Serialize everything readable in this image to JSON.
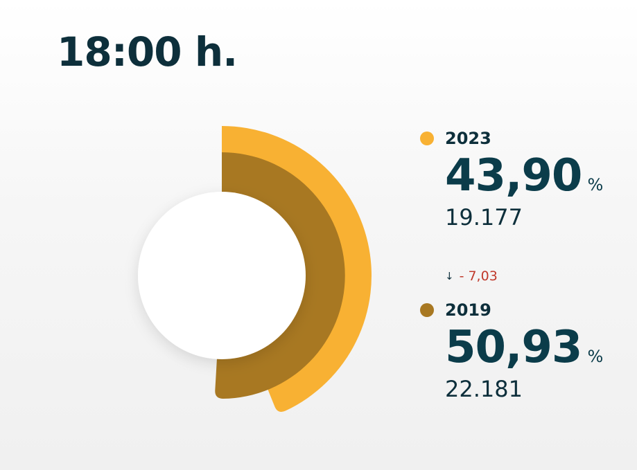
{
  "title": "18:00 h.",
  "colors": {
    "series_2023": "#f8b133",
    "series_2019": "#a87822",
    "down": "#c0392b",
    "text": "#0d2f3b"
  },
  "chart_data": {
    "type": "radial-bar",
    "unit": "%",
    "max": 100,
    "series": [
      {
        "name": "2023",
        "value": 43.9,
        "label": "43,90",
        "count": "19.177",
        "color": "#f8b133"
      },
      {
        "name": "2019",
        "value": 50.93,
        "label": "50,93",
        "count": "22.181",
        "color": "#a87822"
      }
    ]
  },
  "legend": {
    "items": [
      {
        "year": "2023",
        "pct": "43,90",
        "unit": "%",
        "count": "19.177"
      },
      {
        "year": "2019",
        "pct": "50,93",
        "unit": "%",
        "count": "22.181"
      }
    ],
    "delta": {
      "arrow": "↓",
      "value": "- 7,03",
      "direction": "down"
    }
  }
}
